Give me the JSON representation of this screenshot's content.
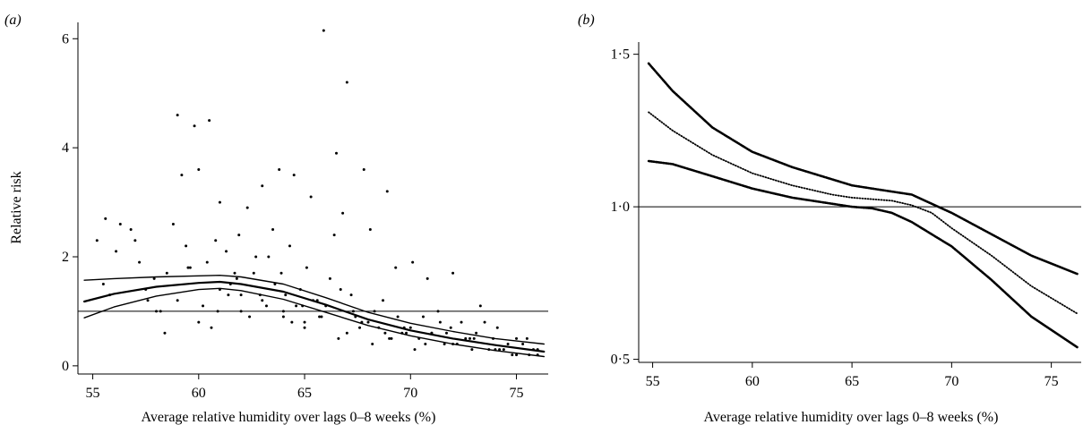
{
  "panel_a": {
    "label": "(a)",
    "xlabel": "Average relative humidity over lags 0–8 weeks (%)",
    "ylabel": "Relative risk",
    "xticks": [
      "55",
      "60",
      "65",
      "70",
      "75"
    ],
    "yticks": [
      "0",
      "2",
      "4",
      "6"
    ]
  },
  "panel_b": {
    "label": "(b)",
    "xlabel": "Average relative humidity over lags 0–8 weeks (%)",
    "ylabel": "",
    "xticks": [
      "55",
      "60",
      "65",
      "70",
      "75"
    ],
    "yticks": [
      "0·5",
      "1·0",
      "1·5"
    ]
  },
  "chart_data": [
    {
      "type": "scatter",
      "title": "",
      "xlabel": "Average relative humidity over lags 0–8 weeks (%)",
      "ylabel": "Relative risk",
      "xlim": [
        54.3,
        76.5
      ],
      "ylim": [
        -0.15,
        6.3
      ],
      "xticks": [
        55,
        60,
        65,
        70,
        75
      ],
      "yticks": [
        0,
        2,
        4,
        6
      ],
      "reference_line": 1.0,
      "grid": false,
      "series": [
        {
          "kind": "line",
          "x": [
            54.6,
            56,
            58,
            60,
            61,
            62,
            64,
            66,
            68,
            70,
            72,
            74,
            76.3
          ],
          "y": [
            0.88,
            1.08,
            1.28,
            1.4,
            1.42,
            1.38,
            1.22,
            0.98,
            0.74,
            0.55,
            0.4,
            0.28,
            0.17
          ]
        },
        {
          "kind": "line",
          "x": [
            54.6,
            56,
            58,
            60,
            61,
            62,
            64,
            66,
            68,
            70,
            72,
            74,
            76.3
          ],
          "y": [
            1.18,
            1.32,
            1.45,
            1.52,
            1.54,
            1.5,
            1.36,
            1.12,
            0.85,
            0.65,
            0.5,
            0.38,
            0.26
          ]
        },
        {
          "kind": "line",
          "x": [
            54.6,
            56,
            58,
            60,
            61,
            62,
            64,
            66,
            68,
            70,
            72,
            74,
            76.3
          ],
          "y": [
            1.57,
            1.6,
            1.63,
            1.65,
            1.66,
            1.63,
            1.5,
            1.25,
            0.98,
            0.78,
            0.63,
            0.5,
            0.4
          ]
        },
        {
          "kind": "points",
          "x": [
            55.2,
            55.6,
            55.8,
            56.3,
            56.8,
            57.2,
            57.6,
            58.2,
            59.0,
            59.2,
            59.5,
            59.8,
            60.0,
            60.2,
            60.5,
            61.0,
            61.3,
            61.7,
            62.0,
            62.3,
            62.7,
            63.0,
            63.2,
            63.5,
            63.8,
            64.0,
            64.3,
            64.5,
            64.8,
            65.0,
            65.3,
            65.6,
            65.9,
            66.2,
            66.5,
            66.8,
            67.0,
            67.4,
            67.8,
            68.1,
            68.5,
            68.9,
            69.3,
            69.6,
            70.1,
            70.4,
            70.8,
            71.3,
            71.6,
            72.0,
            72.4,
            72.8,
            73.3,
            73.7,
            74.1,
            74.6,
            75.0,
            75.6,
            76.0,
            55.5,
            56.1,
            57.0,
            57.9,
            58.5,
            58.8,
            59.4,
            60.4,
            60.8,
            61.5,
            61.9,
            62.6,
            63.3,
            64.1,
            64.6,
            65.1,
            65.7,
            66.4,
            67.2,
            67.6,
            68.3,
            68.7,
            69.1,
            69.8,
            70.6,
            71.0,
            71.9,
            72.6,
            73.5,
            74.4,
            75.3,
            58.0,
            59.0,
            60.0,
            61.0,
            62.0,
            63.0,
            64.0,
            65.0,
            66.0,
            67.0,
            68.0,
            69.0,
            70.0,
            71.0,
            72.0,
            73.0,
            74.0,
            75.0,
            76.0,
            57.5,
            58.4,
            60.6,
            61.4,
            62.4,
            63.6,
            64.4,
            65.4,
            66.6,
            67.3,
            68.2,
            69.4,
            70.2,
            71.4,
            72.2,
            73.1,
            74.2,
            75.5,
            59.6,
            60.9,
            61.8,
            62.9,
            63.9,
            64.9,
            65.8,
            66.7,
            67.7,
            68.8,
            69.7,
            70.7,
            71.7,
            72.9,
            73.9,
            74.8,
            75.8
          ],
          "y": [
            2.3,
            2.7,
            1.3,
            2.6,
            2.5,
            1.9,
            1.2,
            1.0,
            4.6,
            3.5,
            1.8,
            4.4,
            3.6,
            1.1,
            4.5,
            3.0,
            2.1,
            1.7,
            1.3,
            2.9,
            2.0,
            3.3,
            1.1,
            2.5,
            3.6,
            1.0,
            2.2,
            3.5,
            1.4,
            0.8,
            3.1,
            1.2,
            6.15,
            1.6,
            3.9,
            2.8,
            5.2,
            0.9,
            3.6,
            2.5,
            0.7,
            3.2,
            1.8,
            0.6,
            1.9,
            0.5,
            1.6,
            1.0,
            0.4,
            1.7,
            0.8,
            0.5,
            1.1,
            0.3,
            0.7,
            0.4,
            0.5,
            0.2,
            0.3,
            1.5,
            2.1,
            2.3,
            1.6,
            1.7,
            2.6,
            2.2,
            1.9,
            2.3,
            1.5,
            2.4,
            1.7,
            2.0,
            1.3,
            1.1,
            1.8,
            0.9,
            2.4,
            1.3,
            0.7,
            1.0,
            1.2,
            0.5,
            0.6,
            0.9,
            0.6,
            0.7,
            0.5,
            0.8,
            0.3,
            0.4,
            1.0,
            1.2,
            0.8,
            1.4,
            1.0,
            1.2,
            0.9,
            0.7,
            1.1,
            0.6,
            0.8,
            0.5,
            0.7,
            0.6,
            0.4,
            0.5,
            0.3,
            0.2,
            0.2,
            1.4,
            0.6,
            0.7,
            1.3,
            0.9,
            1.5,
            0.8,
            1.2,
            0.5,
            1.0,
            0.4,
            0.9,
            0.3,
            0.8,
            0.4,
            0.6,
            0.3,
            0.5,
            1.8,
            1.0,
            1.6,
            1.3,
            1.7,
            1.1,
            0.9,
            1.4,
            0.8,
            0.6,
            0.7,
            0.4,
            0.6,
            0.3,
            0.5,
            0.2,
            0.3
          ]
        }
      ]
    },
    {
      "type": "line",
      "title": "",
      "xlabel": "Average relative humidity over lags 0–8 weeks (%)",
      "ylabel": "",
      "xlim": [
        54.3,
        76.5
      ],
      "ylim": [
        0.49,
        1.54
      ],
      "xticks": [
        55,
        60,
        65,
        70,
        75
      ],
      "yticks": [
        0.5,
        1.0,
        1.5
      ],
      "reference_line": 1.0,
      "grid": false,
      "series": [
        {
          "kind": "line",
          "style": "dotted-heavy",
          "x": [
            54.8,
            56,
            58,
            60,
            62,
            64,
            65,
            66,
            67,
            68,
            69,
            70,
            72,
            74,
            76.3
          ],
          "y": [
            1.47,
            1.38,
            1.26,
            1.18,
            1.13,
            1.09,
            1.07,
            1.06,
            1.05,
            1.04,
            1.01,
            0.98,
            0.91,
            0.84,
            0.78
          ]
        },
        {
          "kind": "line",
          "style": "dotted-light",
          "x": [
            54.8,
            56,
            58,
            60,
            62,
            64,
            65,
            66,
            67,
            68,
            69,
            70,
            72,
            74,
            76.3
          ],
          "y": [
            1.31,
            1.25,
            1.17,
            1.11,
            1.07,
            1.04,
            1.03,
            1.025,
            1.02,
            1.005,
            0.98,
            0.93,
            0.84,
            0.74,
            0.65
          ]
        },
        {
          "kind": "line",
          "style": "dotted-heavy",
          "x": [
            54.8,
            56,
            58,
            60,
            62,
            64,
            65,
            66,
            67,
            68,
            69,
            70,
            72,
            74,
            76.3
          ],
          "y": [
            1.15,
            1.14,
            1.1,
            1.06,
            1.03,
            1.01,
            1.0,
            0.995,
            0.98,
            0.95,
            0.91,
            0.87,
            0.76,
            0.64,
            0.54
          ]
        }
      ]
    }
  ]
}
